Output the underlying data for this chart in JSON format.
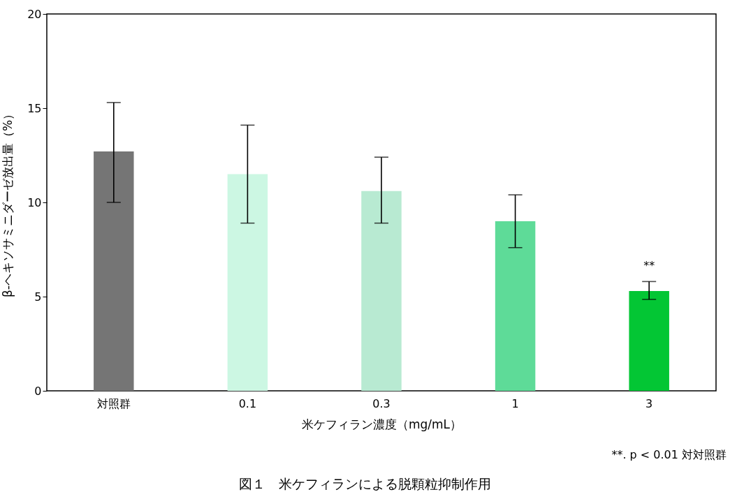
{
  "chart_data": {
    "type": "bar",
    "title": "図１　米ケフィランによる脱顆粒抑制作用",
    "xlabel": "米ケフィラン濃度（mg/mL）",
    "ylabel": "β-ヘキソサミニダーゼ放出量（%）",
    "categories": [
      "対照群",
      "0.1",
      "0.3",
      "1",
      "3"
    ],
    "values": [
      12.7,
      11.5,
      10.6,
      9.0,
      5.3
    ],
    "colors": [
      "#757575",
      "#ccf7e3",
      "#b8ead2",
      "#5edb98",
      "#03c634"
    ],
    "errors": [
      [
        10.0,
        15.3
      ],
      [
        8.9,
        14.1
      ],
      [
        8.9,
        12.4
      ],
      [
        7.6,
        10.4
      ],
      [
        4.85,
        5.8
      ]
    ],
    "ylim": [
      0,
      20
    ],
    "yticks": [
      0,
      5,
      10,
      15,
      20
    ],
    "annotations": [
      {
        "text": "**",
        "x": "3",
        "y": 5.8
      },
      "**. p < 0.01 対対照群"
    ]
  }
}
